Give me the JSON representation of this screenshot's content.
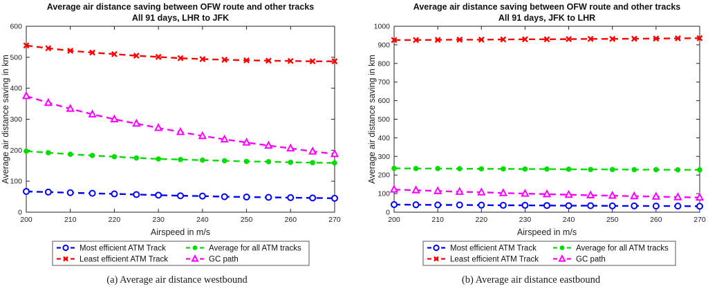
{
  "page": {
    "background": "#ffffff"
  },
  "captions": [
    "(a) Average air distance westbound",
    "(b) Average air distance eastbound"
  ],
  "chart_data": [
    {
      "type": "line",
      "title_lines": [
        "Average air distance saving between OFW route and other tracks",
        "All 91 days, LHR to JFK"
      ],
      "xlabel": "Airspeed in m/s",
      "ylabel": "Average air distance saving in km",
      "xlim": [
        200,
        270
      ],
      "ylim": [
        0,
        600
      ],
      "xticks": [
        200,
        210,
        220,
        230,
        240,
        250,
        260,
        270
      ],
      "yticks": [
        0,
        100,
        200,
        300,
        400,
        500,
        600
      ],
      "grid": false,
      "box": true,
      "legend_position": "below",
      "linestyle": "dashed",
      "x": [
        200,
        205,
        210,
        215,
        220,
        225,
        230,
        235,
        240,
        245,
        250,
        255,
        260,
        265,
        270
      ],
      "series": [
        {
          "name": "Most efficient ATM Track",
          "color": "#0000ff",
          "marker": "circle-open",
          "values": [
            67,
            65,
            63,
            61,
            59,
            57,
            55,
            53,
            52,
            50,
            49,
            48,
            47,
            46,
            45
          ]
        },
        {
          "name": "Least efficient ATM Track",
          "color": "#ff0000",
          "marker": "x",
          "values": [
            538,
            529,
            521,
            515,
            510,
            505,
            501,
            497,
            494,
            492,
            490,
            489,
            488,
            487,
            487
          ]
        },
        {
          "name": "Average for all ATM tracks",
          "color": "#00dd00",
          "marker": "circle-filled",
          "values": [
            197,
            192,
            187,
            183,
            179,
            175,
            172,
            170,
            168,
            166,
            164,
            163,
            161,
            160,
            159
          ]
        },
        {
          "name": "GC path",
          "color": "#ff00ff",
          "marker": "triangle-open",
          "values": [
            375,
            353,
            334,
            316,
            300,
            286,
            272,
            259,
            246,
            235,
            225,
            215,
            206,
            196,
            188
          ]
        }
      ]
    },
    {
      "type": "line",
      "title_lines": [
        "Average air distance saving between OFW route and other tracks",
        "All 91 days, JFK to LHR"
      ],
      "xlabel": "Airspeed in m/s",
      "ylabel": "Average air distance saving in km",
      "xlim": [
        200,
        270
      ],
      "ylim": [
        0,
        1000
      ],
      "xticks": [
        200,
        210,
        220,
        230,
        240,
        250,
        260,
        270
      ],
      "yticks": [
        0,
        100,
        200,
        300,
        400,
        500,
        600,
        700,
        800,
        900,
        1000
      ],
      "grid": false,
      "box": true,
      "legend_position": "below",
      "linestyle": "dashed",
      "x": [
        200,
        205,
        210,
        215,
        220,
        225,
        230,
        235,
        240,
        245,
        250,
        255,
        260,
        265,
        270
      ],
      "series": [
        {
          "name": "Most efficient ATM Track",
          "color": "#0000ff",
          "marker": "circle-open",
          "values": [
            41,
            40,
            39,
            39,
            38,
            37,
            37,
            36,
            35,
            35,
            34,
            34,
            33,
            33,
            32
          ]
        },
        {
          "name": "Least efficient ATM Track",
          "color": "#ff0000",
          "marker": "x",
          "values": [
            926,
            926,
            927,
            928,
            928,
            929,
            930,
            930,
            931,
            932,
            932,
            933,
            934,
            935,
            936
          ]
        },
        {
          "name": "Average for all ATM tracks",
          "color": "#00dd00",
          "marker": "circle-filled",
          "values": [
            236,
            235,
            235,
            234,
            233,
            233,
            232,
            232,
            231,
            230,
            230,
            229,
            229,
            228,
            228
          ]
        },
        {
          "name": "GC path",
          "color": "#ff00ff",
          "marker": "triangle-open",
          "values": [
            122,
            118,
            114,
            110,
            107,
            103,
            100,
            97,
            94,
            91,
            89,
            86,
            84,
            81,
            79
          ]
        }
      ]
    }
  ]
}
